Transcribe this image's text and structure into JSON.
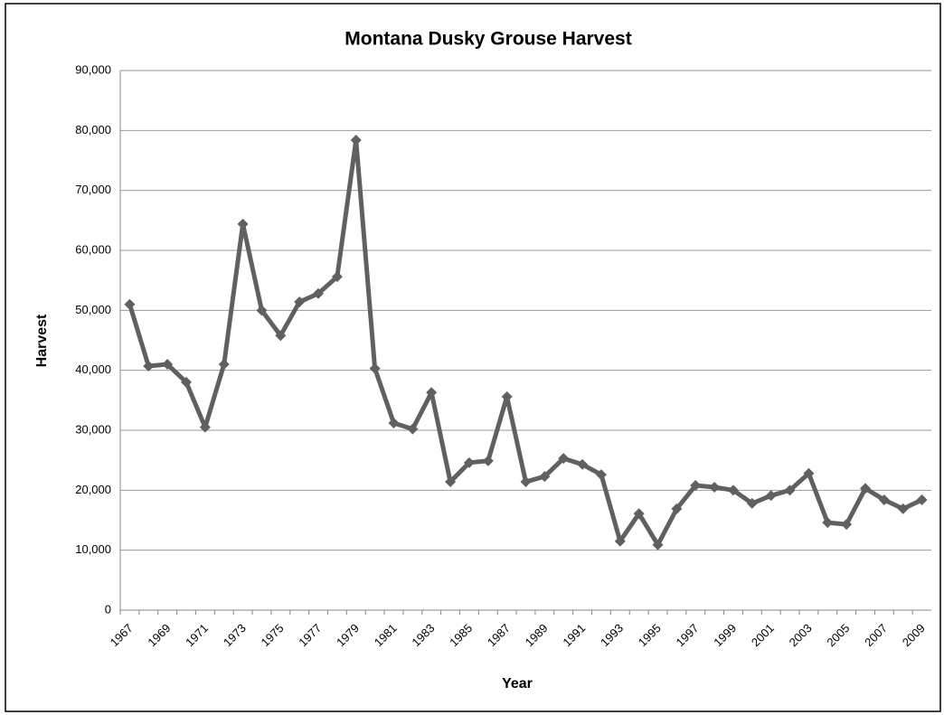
{
  "chart_data": {
    "type": "line",
    "title": "Montana Dusky Grouse Harvest",
    "x_label": "Year",
    "y_label": "Harvest",
    "categories": [
      "1967",
      null,
      "1969",
      null,
      "1971",
      null,
      "1973",
      null,
      "1975",
      null,
      "1977",
      null,
      "1979",
      null,
      "1981",
      null,
      "1983",
      null,
      "1985",
      null,
      "1987",
      null,
      "1989",
      null,
      "1991",
      null,
      "1993",
      null,
      "1995",
      null,
      "1997",
      null,
      "1999",
      null,
      "2001",
      null,
      "2003",
      null,
      "2005",
      null,
      "2007",
      null,
      "2009"
    ],
    "series": [
      {
        "name": "Harvest",
        "color": "#606060",
        "values": [
          51000,
          40700,
          41000,
          38000,
          30500,
          41000,
          64400,
          50000,
          45800,
          51400,
          52800,
          55600,
          78400,
          40300,
          31200,
          30200,
          36300,
          21400,
          24600,
          24900,
          35600,
          21400,
          22300,
          25300,
          24300,
          22600,
          11500,
          16100,
          10900,
          16900,
          20800,
          20500,
          20000,
          17800,
          19100,
          20000,
          22800,
          14600,
          14300,
          20300,
          18400,
          16900,
          18400
        ]
      }
    ],
    "ylim": [
      0,
      90000
    ],
    "yticks": [
      0,
      {
        "value": 10000,
        "label": "10,000"
      },
      {
        "value": 20000,
        "label": "20,000"
      },
      {
        "value": 30000,
        "label": "30,000"
      },
      {
        "value": 40000,
        "label": "40,000"
      },
      {
        "value": 50000,
        "label": "50,000"
      },
      {
        "value": 60000,
        "label": "60,000"
      },
      {
        "value": 70000,
        "label": "70,000"
      },
      {
        "value": 80000,
        "label": "80,000"
      },
      {
        "value": 90000,
        "label": "90,000"
      }
    ],
    "grid": true
  }
}
